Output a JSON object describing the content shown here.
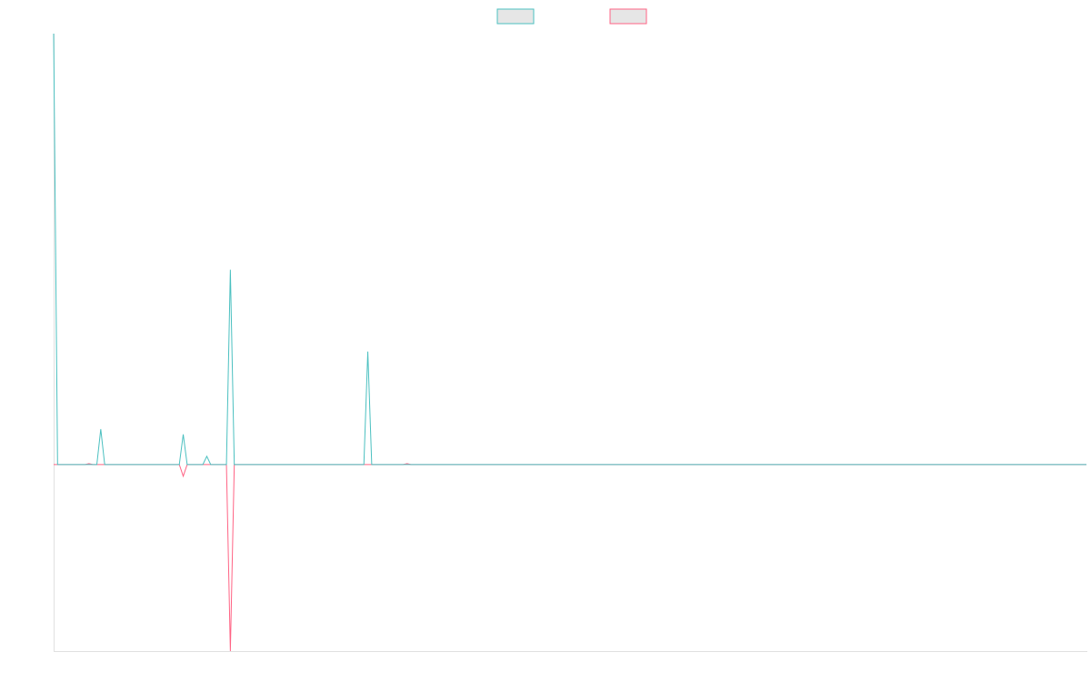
{
  "chart_data": {
    "type": "line",
    "x": [
      0,
      1,
      8,
      9,
      10,
      11,
      12,
      13,
      32,
      33,
      34,
      38,
      39,
      40,
      44,
      45,
      46,
      79,
      80,
      81,
      89,
      90,
      91,
      263
    ],
    "xlim": [
      0,
      263
    ],
    "ylim": [
      -43.3,
      100
    ],
    "legend": "top",
    "series": [
      {
        "color": "#4bc0c0",
        "values": [
          100,
          0,
          0,
          0,
          0,
          0,
          8.2,
          0,
          0,
          7,
          0,
          0,
          1.9,
          0,
          0,
          45.2,
          0,
          0,
          26.2,
          0,
          0,
          0,
          0,
          0
        ]
      },
      {
        "color": "#ff6384",
        "values": [
          0,
          0,
          0,
          0.2,
          0,
          0,
          0,
          0,
          0,
          -2.7,
          0,
          0,
          0,
          0,
          0,
          -43.3,
          0,
          0,
          0,
          0,
          0,
          0.2,
          0,
          0
        ]
      }
    ]
  }
}
